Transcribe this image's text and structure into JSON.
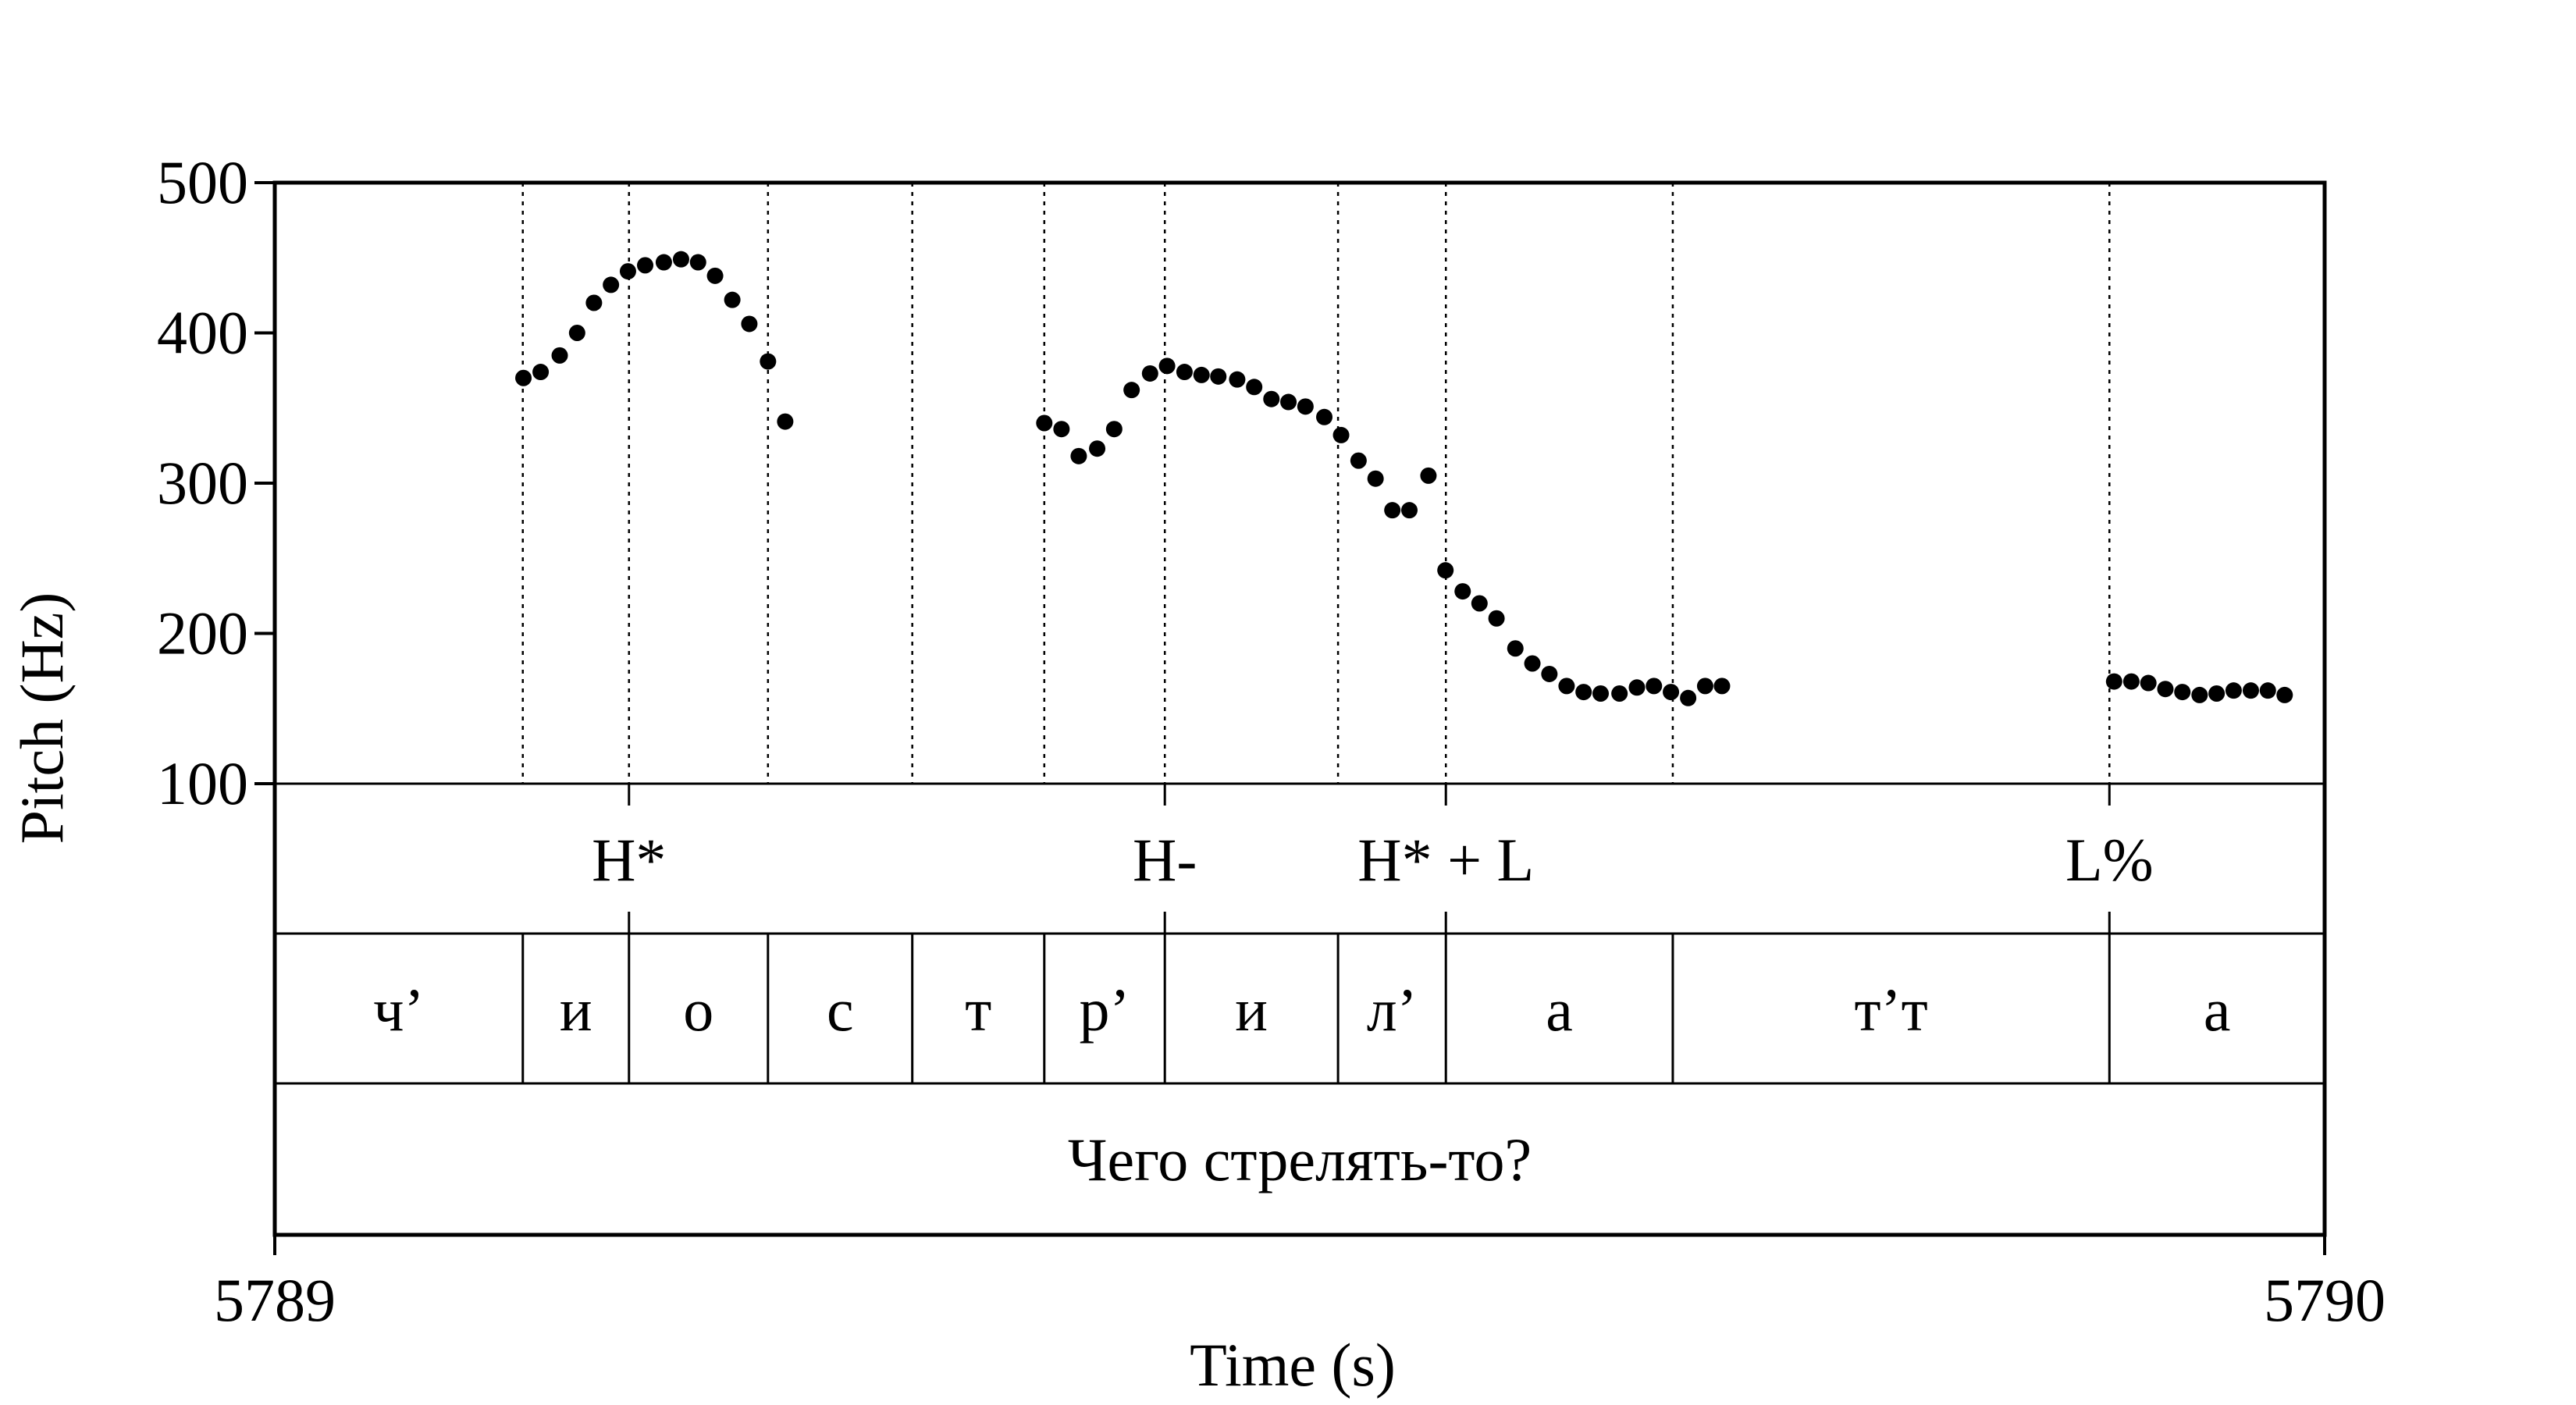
{
  "chart_data": {
    "type": "scatter",
    "title": "",
    "xlabel": "Time (s)",
    "ylabel": "Pitch (Hz)",
    "xlim": [
      5789,
      5790
    ],
    "ylim": [
      100,
      500
    ],
    "x_ticks": [
      "5789",
      "5790"
    ],
    "y_ticks": [
      "100",
      "200",
      "300",
      "400",
      "500"
    ],
    "grid": false,
    "series": [
      {
        "values": [
          [
            5789.1213,
            370
          ],
          [
            5789.1297,
            374
          ],
          [
            5789.139,
            385
          ],
          [
            5789.1475,
            400
          ],
          [
            5789.1557,
            420
          ],
          [
            5789.164,
            432
          ],
          [
            5789.1723,
            441
          ],
          [
            5789.1807,
            445
          ],
          [
            5789.1898,
            447
          ],
          [
            5789.1982,
            449
          ],
          [
            5789.2065,
            447
          ],
          [
            5789.2148,
            438
          ],
          [
            5789.2232,
            422
          ],
          [
            5789.2315,
            406
          ],
          [
            5789.2406,
            381
          ],
          [
            5789.249,
            341
          ],
          [
            5789.3754,
            340
          ],
          [
            5789.3838,
            336
          ],
          [
            5789.3922,
            318
          ],
          [
            5789.4012,
            323
          ],
          [
            5789.4095,
            336
          ],
          [
            5789.418,
            362
          ],
          [
            5789.427,
            373
          ],
          [
            5789.4353,
            378
          ],
          [
            5789.4438,
            374
          ],
          [
            5789.4521,
            372
          ],
          [
            5789.4603,
            371
          ],
          [
            5789.4695,
            369
          ],
          [
            5789.4778,
            364
          ],
          [
            5789.4862,
            356
          ],
          [
            5789.4945,
            354
          ],
          [
            5789.5028,
            351
          ],
          [
            5789.512,
            344
          ],
          [
            5789.5202,
            332
          ],
          [
            5789.5287,
            315
          ],
          [
            5789.537,
            303
          ],
          [
            5789.5452,
            282
          ],
          [
            5789.5535,
            282
          ],
          [
            5789.5628,
            305
          ],
          [
            5789.5711,
            242
          ],
          [
            5789.5795,
            228
          ],
          [
            5789.5877,
            220
          ],
          [
            5789.596,
            210
          ],
          [
            5789.6052,
            190
          ],
          [
            5789.6135,
            180
          ],
          [
            5789.6218,
            173
          ],
          [
            5789.6302,
            165
          ],
          [
            5789.6385,
            161
          ],
          [
            5789.6468,
            160
          ],
          [
            5789.656,
            160
          ],
          [
            5789.6645,
            164
          ],
          [
            5789.6728,
            165
          ],
          [
            5789.6811,
            161
          ],
          [
            5789.6895,
            157
          ],
          [
            5789.6978,
            165
          ],
          [
            5789.706,
            165
          ],
          [
            5789.8973,
            168
          ],
          [
            5789.9057,
            168
          ],
          [
            5789.914,
            167
          ],
          [
            5789.9223,
            163
          ],
          [
            5789.9306,
            161
          ],
          [
            5789.939,
            159
          ],
          [
            5789.9473,
            160
          ],
          [
            5789.9556,
            162
          ],
          [
            5789.964,
            162
          ],
          [
            5789.9723,
            162
          ],
          [
            5789.9805,
            159
          ]
        ]
      }
    ],
    "tones": [
      {
        "label": "H*",
        "time": 5789.1728
      },
      {
        "label": "H-",
        "time": 5789.4342
      },
      {
        "label": "H* + L",
        "time": 5789.5713
      },
      {
        "label": "L%",
        "time": 5789.895
      }
    ],
    "segments": [
      {
        "label": "ч’",
        "start": 5789.0,
        "end": 5789.121
      },
      {
        "label": "и",
        "start": 5789.121,
        "end": 5789.1728
      },
      {
        "label": "о",
        "start": 5789.1728,
        "end": 5789.2406
      },
      {
        "label": "с",
        "start": 5789.2406,
        "end": 5789.311
      },
      {
        "label": "т",
        "start": 5789.311,
        "end": 5789.3754
      },
      {
        "label": "р’",
        "start": 5789.3754,
        "end": 5789.4342
      },
      {
        "label": "и",
        "start": 5789.4342,
        "end": 5789.5187
      },
      {
        "label": "л’",
        "start": 5789.5187,
        "end": 5789.5713
      },
      {
        "label": "а",
        "start": 5789.5713,
        "end": 5789.682
      },
      {
        "label": "т’т",
        "start": 5789.682,
        "end": 5789.895
      },
      {
        "label": "а",
        "start": 5789.895,
        "end": 5790.0
      }
    ],
    "utterance": "Чего стрелять-то?"
  }
}
